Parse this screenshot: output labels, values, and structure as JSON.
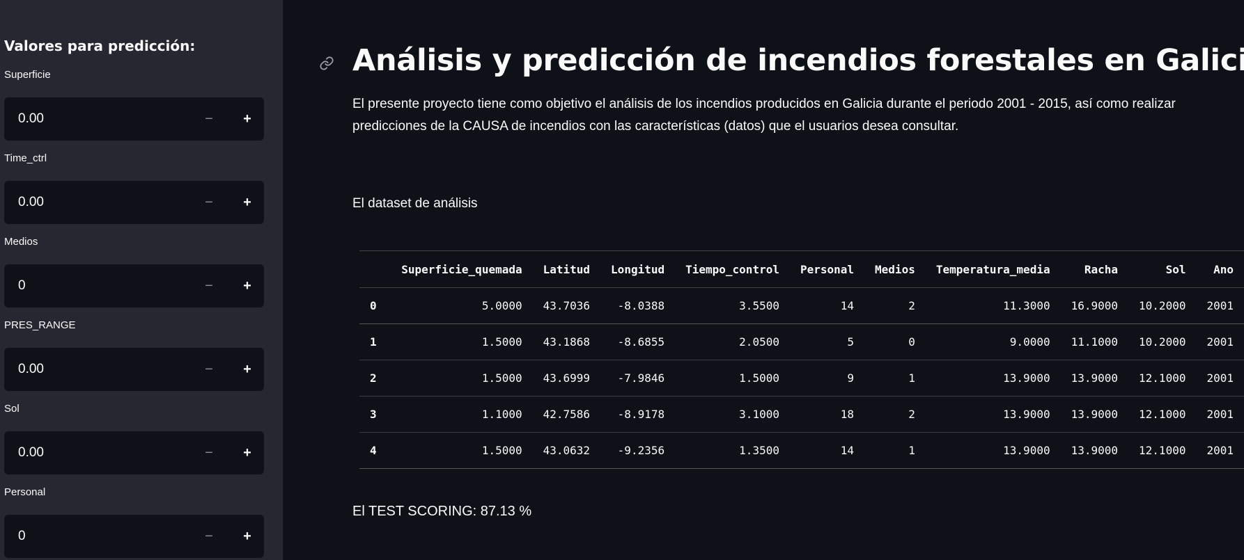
{
  "sidebar": {
    "title": "Valores para predicción:",
    "fields": [
      {
        "label": "Superficie",
        "value": "0.00"
      },
      {
        "label": "Time_ctrl",
        "value": "0.00"
      },
      {
        "label": "Medios",
        "value": "0"
      },
      {
        "label": "PRES_RANGE",
        "value": "0.00"
      },
      {
        "label": "Sol",
        "value": "0.00"
      },
      {
        "label": "Personal",
        "value": "0"
      }
    ],
    "minus_glyph": "−",
    "plus_glyph": "+"
  },
  "main": {
    "title": "Análisis y predicción de incendios forestales en Galicia",
    "intro": "El presente proyecto tiene como objetivo el análisis de los incendios producidos en Galicia durante el periodo 2001 - 2015, así como realizar predicciones de la CAUSA de incendios con las características (datos) que el usuarios desea consultar.",
    "dataset_label": "El dataset de análisis",
    "score": "El TEST SCORING: 87.13 %"
  },
  "table": {
    "columns": [
      "",
      "Superficie_quemada",
      "Latitud",
      "Longitud",
      "Tiempo_control",
      "Personal",
      "Medios",
      "Temperatura_media",
      "Racha",
      "Sol",
      "Ano"
    ],
    "rows": [
      [
        "0",
        "5.0000",
        "43.7036",
        "-8.0388",
        "3.5500",
        "14",
        "2",
        "11.3000",
        "16.9000",
        "10.2000",
        "2001"
      ],
      [
        "1",
        "1.5000",
        "43.1868",
        "-8.6855",
        "2.0500",
        "5",
        "0",
        "9.0000",
        "11.1000",
        "10.2000",
        "2001"
      ],
      [
        "2",
        "1.5000",
        "43.6999",
        "-7.9846",
        "1.5000",
        "9",
        "1",
        "13.9000",
        "13.9000",
        "12.1000",
        "2001"
      ],
      [
        "3",
        "1.1000",
        "42.7586",
        "-8.9178",
        "3.1000",
        "18",
        "2",
        "13.9000",
        "13.9000",
        "12.1000",
        "2001"
      ],
      [
        "4",
        "1.5000",
        "43.0632",
        "-9.2356",
        "1.3500",
        "14",
        "1",
        "13.9000",
        "13.9000",
        "12.1000",
        "2001"
      ]
    ]
  },
  "colors": {
    "background": "#0e1117",
    "sidebar": "#262730",
    "text": "#fafafa"
  }
}
